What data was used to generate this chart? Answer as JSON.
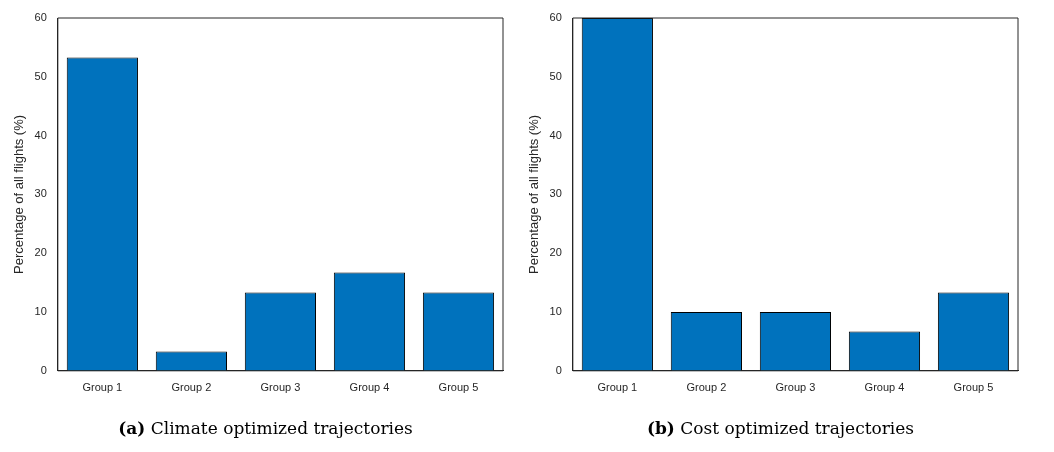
{
  "chart_data": [
    {
      "type": "bar",
      "title": "(a) Climate optimized trajectories",
      "ylabel": "Percentage of all flights (%)",
      "categories": [
        "Group 1",
        "Group 2",
        "Group 3",
        "Group 4",
        "Group 5"
      ],
      "values": [
        53.3,
        3.3,
        13.3,
        16.7,
        13.3
      ],
      "color": "#0072bd",
      "ylim": [
        0,
        60
      ],
      "yticks": [
        0,
        10,
        20,
        30,
        40,
        50,
        60
      ],
      "grid": false,
      "legend": false
    },
    {
      "type": "bar",
      "title": "(b) Cost optimized trajectories",
      "ylabel": "Percentage of all flights (%)",
      "categories": [
        "Group 1",
        "Group 2",
        "Group 3",
        "Group 4",
        "Group 5"
      ],
      "values": [
        60,
        10,
        10,
        6.7,
        13.3
      ],
      "color": "#0072bd",
      "ylim": [
        0,
        60
      ],
      "yticks": [
        0,
        10,
        20,
        30,
        40,
        50,
        60
      ],
      "grid": false,
      "legend": false
    }
  ]
}
